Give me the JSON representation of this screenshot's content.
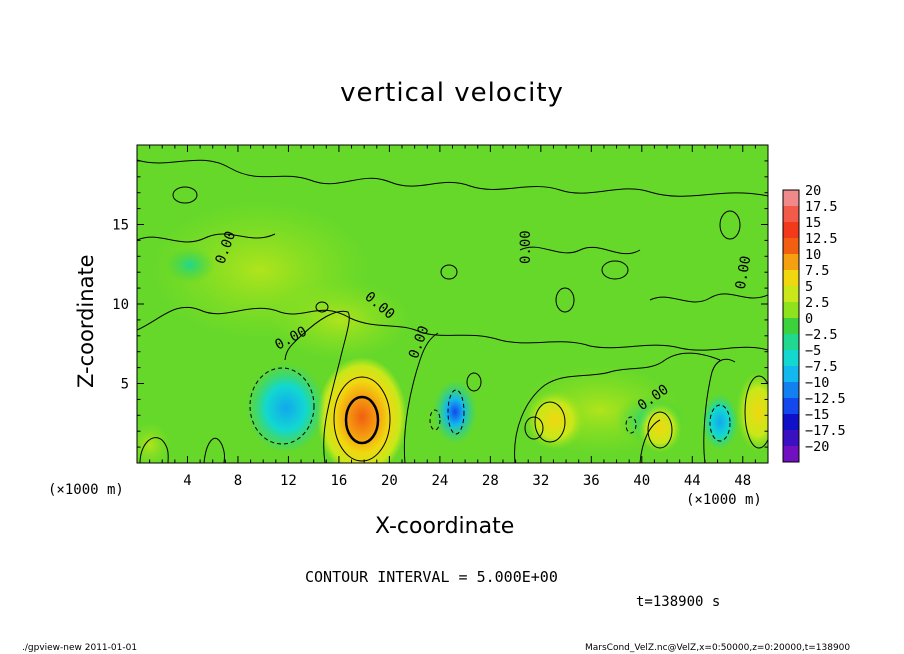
{
  "chart_data": {
    "type": "heatmap",
    "title": "vertical velocity",
    "xlabel": "X-coordinate",
    "ylabel": "Z-coordinate",
    "x_unit_left": "(×1000 m)",
    "x_unit_right": "(×1000 m)",
    "xlim": [
      0,
      50
    ],
    "ylim": [
      0,
      20
    ],
    "x_ticks": [
      4,
      8,
      12,
      16,
      20,
      24,
      28,
      32,
      36,
      40,
      44,
      48
    ],
    "y_ticks": [
      5,
      10,
      15
    ],
    "colorbar": {
      "levels": [
        20,
        17.5,
        15,
        12.5,
        10,
        7.5,
        5,
        2.5,
        0,
        -2.5,
        -5,
        -7.5,
        -10,
        -12.5,
        -15,
        -17.5,
        -20
      ],
      "labels": [
        "20",
        "17.5",
        "15",
        "12.5",
        "10",
        "7.5",
        "5",
        "2.5",
        "0",
        "−2.5",
        "−5",
        "−7.5",
        "−10",
        "−12.5",
        "−15",
        "−17.5",
        "−20"
      ],
      "colors": [
        "#f08a8a",
        "#f25a4a",
        "#f23a1a",
        "#f25f10",
        "#f5a010",
        "#f0d810",
        "#c8e81a",
        "#8ee21e",
        "#3cd23c",
        "#20d890",
        "#12d8d0",
        "#12b8ee",
        "#1280ee",
        "#1248ee",
        "#1010c8",
        "#3a10c0",
        "#7010c0"
      ]
    },
    "contour_labels": [
      "0.00",
      "0.00",
      "0.00",
      "0.00",
      "0.00",
      "0.00",
      "0.00"
    ],
    "features": [
      {
        "name": "updraft",
        "x": 18,
        "z": 3,
        "peak": 12
      },
      {
        "name": "downdraft",
        "x": 11.5,
        "z": 3,
        "peak": -7
      },
      {
        "name": "downdraft",
        "x": 25,
        "z": 3,
        "peak": -10
      },
      {
        "name": "downdraft",
        "x": 46,
        "z": 2.5,
        "peak": -6
      }
    ]
  },
  "annotations": {
    "contour_interval": "CONTOUR INTERVAL = 5.000E+00",
    "time": "t=138900 s",
    "footer_left": "./gpview-new  2011-01-01",
    "footer_right": "MarsCond_VelZ.nc@VelZ,x=0:50000,z=0:20000,t=138900"
  }
}
